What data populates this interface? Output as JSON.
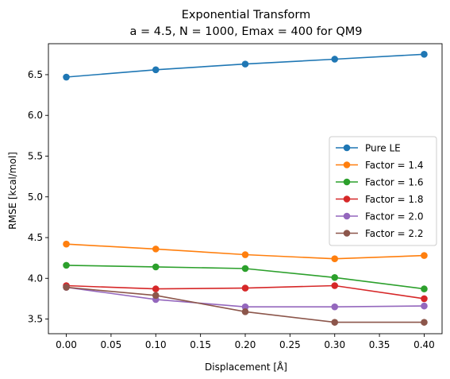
{
  "chart_data": {
    "type": "line",
    "title": "Exponential Transform",
    "subtitle": "a = 4.5, N = 1000, Emax = 400 for QM9",
    "xlabel": "Displacement [Å]",
    "ylabel": "RMSE [kcal/mol]",
    "xlim": [
      -0.02,
      0.42
    ],
    "ylim": [
      3.32,
      6.88
    ],
    "x": [
      0.0,
      0.1,
      0.2,
      0.3,
      0.4
    ],
    "xticks": [
      0.0,
      0.05,
      0.1,
      0.15,
      0.2,
      0.25,
      0.3,
      0.35,
      0.4
    ],
    "xtick_labels": [
      "0.00",
      "0.05",
      "0.10",
      "0.15",
      "0.20",
      "0.25",
      "0.30",
      "0.35",
      "0.40"
    ],
    "yticks": [
      3.5,
      4.0,
      4.5,
      5.0,
      5.5,
      6.0,
      6.5
    ],
    "ytick_labels": [
      "3.5",
      "4.0",
      "4.5",
      "5.0",
      "5.5",
      "6.0",
      "6.5"
    ],
    "grid": false,
    "legend_position": "center-right",
    "series": [
      {
        "name": "Pure LE",
        "color": "#1f77b4",
        "values": [
          6.47,
          6.56,
          6.63,
          6.69,
          6.75
        ]
      },
      {
        "name": "Factor = 1.4",
        "color": "#ff7f0e",
        "values": [
          4.42,
          4.36,
          4.29,
          4.24,
          4.28
        ]
      },
      {
        "name": "Factor = 1.6",
        "color": "#2ca02c",
        "values": [
          4.16,
          4.14,
          4.12,
          4.01,
          3.87
        ]
      },
      {
        "name": "Factor = 1.8",
        "color": "#d62728",
        "values": [
          3.91,
          3.87,
          3.88,
          3.91,
          3.75
        ]
      },
      {
        "name": "Factor = 2.0",
        "color": "#9467bd",
        "values": [
          3.89,
          3.74,
          3.65,
          3.65,
          3.66
        ]
      },
      {
        "name": "Factor = 2.2",
        "color": "#8c564b",
        "values": [
          3.89,
          3.79,
          3.59,
          3.46,
          3.46
        ]
      }
    ]
  }
}
